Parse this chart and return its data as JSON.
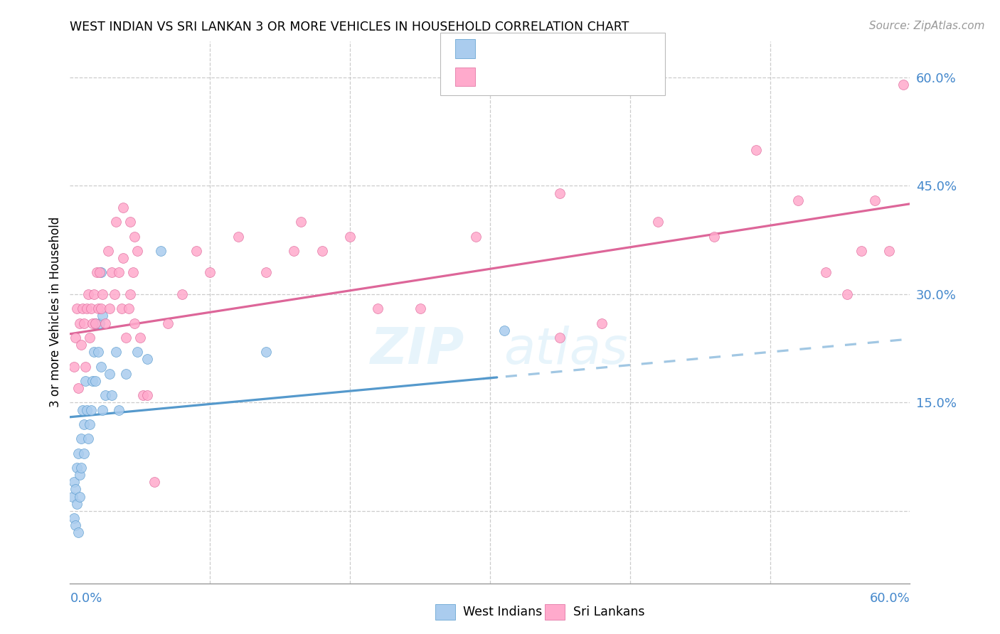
{
  "title": "WEST INDIAN VS SRI LANKAN 3 OR MORE VEHICLES IN HOUSEHOLD CORRELATION CHART",
  "source": "Source: ZipAtlas.com",
  "ylabel": "3 or more Vehicles in Household",
  "color_blue": "#aaccee",
  "color_pink": "#ffaacc",
  "color_blue_line": "#5599cc",
  "color_pink_line": "#dd6699",
  "color_blue_text": "#4488cc",
  "xmin": 0.0,
  "xmax": 0.6,
  "ymin": -0.1,
  "ymax": 0.65,
  "yticks": [
    0.0,
    0.15,
    0.3,
    0.45,
    0.6
  ],
  "yticklabels": [
    "",
    "15.0%",
    "30.0%",
    "45.0%",
    "60.0%"
  ],
  "xticks_vertical": [
    0.1,
    0.2,
    0.3,
    0.4,
    0.5
  ],
  "wi_slope": 0.18,
  "wi_intercept": 0.13,
  "sl_slope": 0.3,
  "sl_intercept": 0.245,
  "west_indians_x": [
    0.002,
    0.003,
    0.003,
    0.004,
    0.004,
    0.005,
    0.005,
    0.006,
    0.006,
    0.007,
    0.007,
    0.008,
    0.008,
    0.009,
    0.01,
    0.01,
    0.011,
    0.012,
    0.013,
    0.014,
    0.015,
    0.016,
    0.017,
    0.018,
    0.018,
    0.02,
    0.021,
    0.022,
    0.023,
    0.025,
    0.028,
    0.03,
    0.033,
    0.035,
    0.04,
    0.048,
    0.055,
    0.065,
    0.14,
    0.31,
    0.022,
    0.023
  ],
  "west_indians_y": [
    0.02,
    0.04,
    -0.01,
    0.03,
    -0.02,
    0.06,
    0.01,
    0.08,
    -0.03,
    0.05,
    0.02,
    0.1,
    0.06,
    0.14,
    0.08,
    0.12,
    0.18,
    0.14,
    0.1,
    0.12,
    0.14,
    0.18,
    0.22,
    0.26,
    0.18,
    0.22,
    0.26,
    0.2,
    0.14,
    0.16,
    0.19,
    0.16,
    0.22,
    0.14,
    0.19,
    0.22,
    0.21,
    0.36,
    0.22,
    0.25,
    0.33,
    0.27
  ],
  "sri_lankans_x": [
    0.003,
    0.004,
    0.005,
    0.006,
    0.007,
    0.008,
    0.009,
    0.01,
    0.011,
    0.012,
    0.013,
    0.014,
    0.015,
    0.016,
    0.017,
    0.018,
    0.019,
    0.02,
    0.021,
    0.022,
    0.023,
    0.025,
    0.027,
    0.028,
    0.03,
    0.032,
    0.033,
    0.035,
    0.037,
    0.04,
    0.042,
    0.045,
    0.048,
    0.05,
    0.052,
    0.055,
    0.06,
    0.07,
    0.08,
    0.09,
    0.1,
    0.12,
    0.14,
    0.16,
    0.18,
    0.2,
    0.22,
    0.25,
    0.29,
    0.35,
    0.42,
    0.46,
    0.49,
    0.52,
    0.54,
    0.555,
    0.565,
    0.575,
    0.585,
    0.595,
    0.038,
    0.038,
    0.165,
    0.35,
    0.38,
    0.043,
    0.043,
    0.046,
    0.046
  ],
  "sri_lankans_y": [
    0.2,
    0.24,
    0.28,
    0.17,
    0.26,
    0.23,
    0.28,
    0.26,
    0.2,
    0.28,
    0.3,
    0.24,
    0.28,
    0.26,
    0.3,
    0.26,
    0.33,
    0.28,
    0.33,
    0.28,
    0.3,
    0.26,
    0.36,
    0.28,
    0.33,
    0.3,
    0.4,
    0.33,
    0.28,
    0.24,
    0.28,
    0.33,
    0.36,
    0.24,
    0.16,
    0.16,
    0.04,
    0.26,
    0.3,
    0.36,
    0.33,
    0.38,
    0.33,
    0.36,
    0.36,
    0.38,
    0.28,
    0.28,
    0.38,
    0.24,
    0.4,
    0.38,
    0.5,
    0.43,
    0.33,
    0.3,
    0.36,
    0.43,
    0.36,
    0.59,
    0.42,
    0.35,
    0.4,
    0.44,
    0.26,
    0.3,
    0.4,
    0.38,
    0.26
  ]
}
